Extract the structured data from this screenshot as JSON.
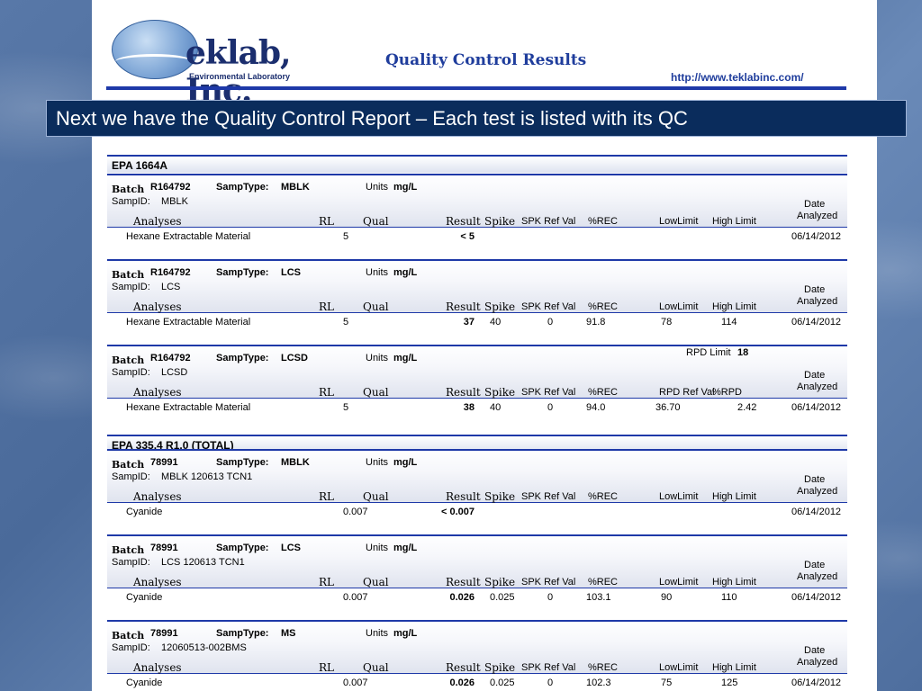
{
  "header": {
    "logo_name": "eklab, Inc.",
    "logo_sub": "Environmental Laboratory",
    "report_title": "Quality Control Results",
    "url": "http://www.teklabinc.com/"
  },
  "banner": "Next we have the Quality Control Report – Each test is listed with its QC",
  "labels": {
    "batch": "Batch",
    "samp_type": "SampType:",
    "units": "Units",
    "samp_id": "SampID:",
    "analyses": "Analyses",
    "rl": "RL",
    "qual": "Qual",
    "result": "Result",
    "spike": "Spike",
    "spk_ref_val": "SPK Ref Val",
    "rec": "%REC",
    "low_limit": "LowLimit",
    "high_limit": "High Limit",
    "rpd_limit": "RPD Limit",
    "rpd_ref_val": "RPD Ref Val",
    "rpd": "%RPD",
    "date": "Date",
    "analyzed": "Analyzed"
  },
  "sections": [
    {
      "title": "EPA 1664A",
      "blocks": [
        {
          "batch": "R164792",
          "samp_type": "MBLK",
          "units": "mg/L",
          "samp_id": "MBLK",
          "analyte": "Hexane Extractable Material",
          "rl": "5",
          "result": "< 5",
          "spike": "",
          "spk_ref_val": "",
          "rec": "",
          "low": "",
          "high": "",
          "date": "06/14/2012"
        },
        {
          "batch": "R164792",
          "samp_type": "LCS",
          "units": "mg/L",
          "samp_id": "LCS",
          "analyte": "Hexane Extractable Material",
          "rl": "5",
          "result": "37",
          "spike": "40",
          "spk_ref_val": "0",
          "rec": "91.8",
          "low": "78",
          "high": "114",
          "date": "06/14/2012"
        },
        {
          "batch": "R164792",
          "samp_type": "LCSD",
          "units": "mg/L",
          "samp_id": "LCSD",
          "rpd_limit": "18",
          "analyte": "Hexane Extractable Material",
          "rl": "5",
          "result": "38",
          "spike": "40",
          "spk_ref_val": "0",
          "rec": "94.0",
          "rpd_ref_val": "36.70",
          "rpd": "2.42",
          "date": "06/14/2012"
        }
      ]
    },
    {
      "title": "EPA 335.4 R1.0 (TOTAL)",
      "blocks": [
        {
          "batch": "78991",
          "samp_type": "MBLK",
          "units": "mg/L",
          "samp_id": "MBLK 120613 TCN1",
          "analyte": "Cyanide",
          "rl": "0.007",
          "result": "< 0.007",
          "spike": "",
          "spk_ref_val": "",
          "rec": "",
          "low": "",
          "high": "",
          "date": "06/14/2012"
        },
        {
          "batch": "78991",
          "samp_type": "LCS",
          "units": "mg/L",
          "samp_id": "LCS 120613 TCN1",
          "analyte": "Cyanide",
          "rl": "0.007",
          "result": "0.026",
          "spike": "0.025",
          "spk_ref_val": "0",
          "rec": "103.1",
          "low": "90",
          "high": "110",
          "date": "06/14/2012"
        },
        {
          "batch": "78991",
          "samp_type": "MS",
          "units": "mg/L",
          "samp_id": "12060513-002BMS",
          "analyte": "Cyanide",
          "rl": "0.007",
          "result": "0.026",
          "spike": "0.025",
          "spk_ref_val": "0",
          "rec": "102.3",
          "low": "75",
          "high": "125",
          "date": "06/14/2012"
        }
      ]
    }
  ]
}
